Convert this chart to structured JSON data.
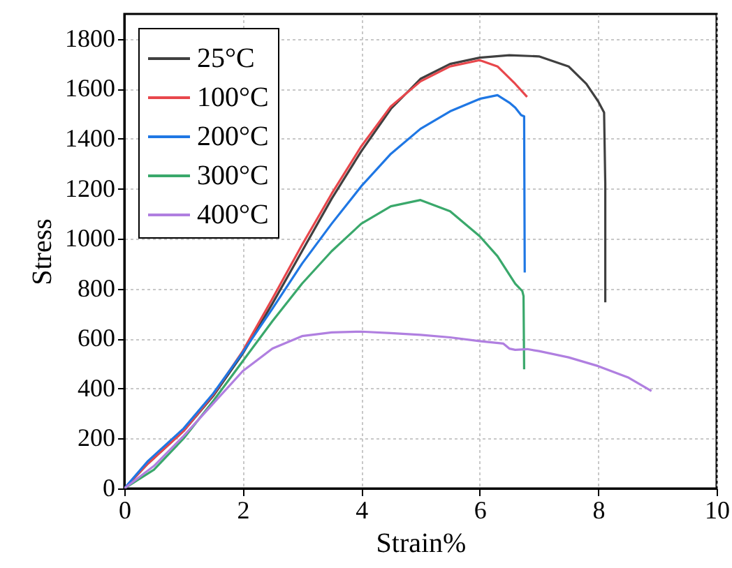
{
  "chart_data": {
    "type": "line",
    "xlabel": "Strain%",
    "ylabel": "Stress",
    "xlim": [
      0,
      10
    ],
    "xticks": [
      0,
      2,
      4,
      6,
      8,
      10
    ],
    "ylim": [
      0,
      1900
    ],
    "yticks": [
      0,
      200,
      400,
      600,
      800,
      1000,
      1200,
      1400,
      1600,
      1800
    ],
    "grid": true,
    "legend": "top left",
    "series": [
      {
        "name": "25°C",
        "color": "#404040",
        "x": [
          0,
          0.4,
          1,
          1.5,
          2,
          2.5,
          3,
          3.5,
          4,
          4.5,
          5,
          5.5,
          6,
          6.5,
          7,
          7.5,
          7.8,
          8.0,
          8.1,
          8.12,
          8.12
        ],
        "values": [
          0,
          100,
          230,
          370,
          540,
          740,
          950,
          1160,
          1350,
          1520,
          1640,
          1700,
          1725,
          1735,
          1730,
          1690,
          1620,
          1550,
          1505,
          1220,
          745
        ]
      },
      {
        "name": "100°C",
        "color": "#e8474c",
        "x": [
          0,
          0.4,
          1,
          1.5,
          2,
          2.5,
          3,
          3.5,
          4,
          4.5,
          5,
          5.5,
          6,
          6.3,
          6.6,
          6.8
        ],
        "values": [
          0,
          100,
          230,
          375,
          550,
          760,
          975,
          1180,
          1370,
          1530,
          1630,
          1690,
          1715,
          1690,
          1620,
          1568
        ]
      },
      {
        "name": "200°C",
        "color": "#1f77e4",
        "x": [
          0,
          0.4,
          1,
          1.5,
          2,
          2.5,
          3,
          3.5,
          4,
          4.5,
          5,
          5.5,
          6,
          6.3,
          6.5,
          6.6,
          6.7,
          6.75,
          6.76
        ],
        "values": [
          0,
          110,
          240,
          380,
          545,
          720,
          900,
          1060,
          1210,
          1340,
          1440,
          1510,
          1560,
          1575,
          1545,
          1525,
          1495,
          1490,
          865
        ]
      },
      {
        "name": "300°C",
        "color": "#3aa86b",
        "x": [
          0,
          0.5,
          1,
          1.5,
          2,
          2.5,
          3,
          3.5,
          4,
          4.5,
          5,
          5.5,
          6,
          6.3,
          6.6,
          6.72,
          6.74,
          6.75
        ],
        "values": [
          0,
          75,
          200,
          350,
          510,
          670,
          820,
          950,
          1060,
          1130,
          1155,
          1110,
          1010,
          930,
          820,
          790,
          770,
          477
        ]
      },
      {
        "name": "400°C",
        "color": "#b07fe0",
        "x": [
          0,
          0.5,
          1,
          1.5,
          2,
          2.5,
          3,
          3.5,
          4,
          4.5,
          5,
          5.5,
          6,
          6.4,
          6.5,
          6.6,
          6.8,
          7,
          7.5,
          8,
          8.5,
          8.9
        ],
        "values": [
          0,
          90,
          210,
          340,
          470,
          560,
          610,
          625,
          628,
          622,
          615,
          605,
          590,
          580,
          560,
          555,
          558,
          550,
          525,
          490,
          445,
          390
        ]
      }
    ]
  }
}
